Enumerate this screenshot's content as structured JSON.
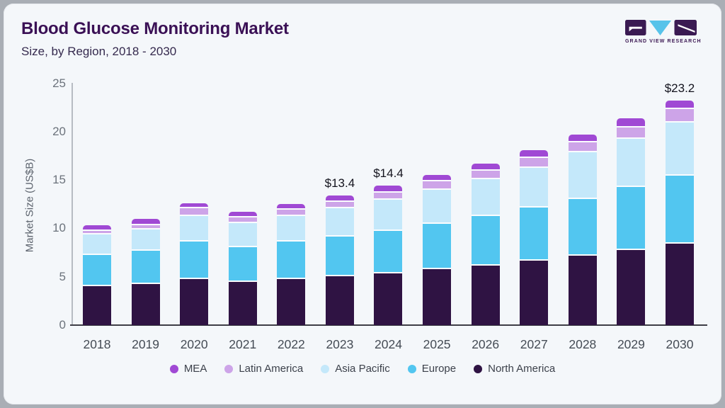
{
  "header": {
    "title": "Blood Glucose Monitoring Market",
    "subtitle": "Size, by Region, 2018 - 2030"
  },
  "logo": {
    "text": "GRAND VIEW RESEARCH",
    "block_color": "#3a1a52",
    "triangle_color": "#57c3ea"
  },
  "chart_data": {
    "type": "bar",
    "stacked": true,
    "title": "Blood Glucose Monitoring Market Size, by Region, 2018 - 2030",
    "xlabel": "",
    "ylabel": "Market Size (US$B)",
    "ylim": [
      0,
      25
    ],
    "yticks": [
      0,
      5,
      10,
      15,
      20,
      25
    ],
    "grid": false,
    "legend_position": "bottom",
    "categories": [
      "2018",
      "2019",
      "2020",
      "2021",
      "2022",
      "2023",
      "2024",
      "2025",
      "2026",
      "2027",
      "2028",
      "2029",
      "2030"
    ],
    "series": [
      {
        "name": "North America",
        "color": "#2f1343",
        "values": [
          4.2,
          4.4,
          4.9,
          4.6,
          4.9,
          5.2,
          5.5,
          5.9,
          6.3,
          6.8,
          7.3,
          7.9,
          8.6
        ]
      },
      {
        "name": "Europe",
        "color": "#52c6f0",
        "values": [
          3.2,
          3.4,
          3.9,
          3.6,
          3.9,
          4.1,
          4.4,
          4.7,
          5.1,
          5.5,
          5.9,
          6.5,
          7.0
        ]
      },
      {
        "name": "Asia Pacific",
        "color": "#c4e8fa",
        "values": [
          2.1,
          2.2,
          2.6,
          2.5,
          2.6,
          2.9,
          3.2,
          3.5,
          3.8,
          4.1,
          4.8,
          5.0,
          5.5
        ]
      },
      {
        "name": "Latin America",
        "color": "#cda4e8",
        "values": [
          0.4,
          0.5,
          0.8,
          0.6,
          0.7,
          0.7,
          0.7,
          0.9,
          0.9,
          1.0,
          1.0,
          1.2,
          1.4
        ]
      },
      {
        "name": "MEA",
        "color": "#a049d4",
        "values": [
          0.4,
          0.5,
          0.4,
          0.4,
          0.4,
          0.5,
          0.6,
          0.5,
          0.6,
          0.7,
          0.7,
          0.8,
          0.7
        ]
      }
    ],
    "totals": [
      10.3,
      11.0,
      12.6,
      11.7,
      12.5,
      13.4,
      14.4,
      15.5,
      16.7,
      18.1,
      19.7,
      21.4,
      23.2
    ],
    "annotations": [
      {
        "category": "2023",
        "text": "$13.4"
      },
      {
        "category": "2024",
        "text": "$14.4"
      },
      {
        "category": "2030",
        "text": "$23.2"
      }
    ],
    "legend": [
      "MEA",
      "Latin America",
      "Asia Pacific",
      "Europe",
      "North America"
    ]
  }
}
